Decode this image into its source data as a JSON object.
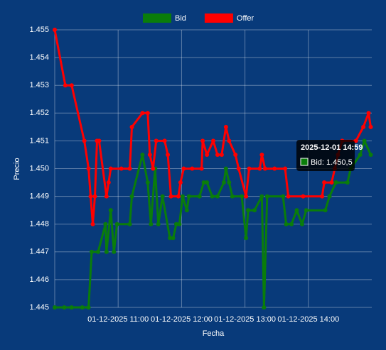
{
  "chart_data": {
    "type": "line",
    "legend": "top",
    "grid": true,
    "xlabel": "Fecha",
    "ylabel": "Precio",
    "xlim": [
      "2025-12-01T10:00",
      "2025-12-01T15:00"
    ],
    "xticks": [
      {
        "value": "2025-12-01T11:00",
        "label": "01-12-2025 11:00"
      },
      {
        "value": "2025-12-01T12:00",
        "label": "01-12-2025 12:00"
      },
      {
        "value": "2025-12-01T13:00",
        "label": "01-12-2025 13:00"
      },
      {
        "value": "2025-12-01T14:00",
        "label": "01-12-2025 14:00"
      }
    ],
    "ylim": [
      1.445,
      1.455
    ],
    "yticks": [
      1.445,
      1.446,
      1.447,
      1.448,
      1.449,
      {
        "value": 1.45,
        "label": "1.450"
      },
      1.451,
      1.452,
      1.453,
      1.454,
      1.455
    ],
    "series": [
      {
        "name": "Bid",
        "color": "#0a7d0a",
        "x": [
          "2025-12-01T10:00",
          "2025-12-01T10:09",
          "2025-12-01T10:16",
          "2025-12-01T10:26",
          "2025-12-01T10:32",
          "2025-12-01T10:35",
          "2025-12-01T10:41",
          "2025-12-01T10:48",
          "2025-12-01T10:49",
          "2025-12-01T10:53",
          "2025-12-01T10:56",
          "2025-12-01T10:59",
          "2025-12-01T11:11",
          "2025-12-01T11:13",
          "2025-12-01T11:23",
          "2025-12-01T11:28",
          "2025-12-01T11:31",
          "2025-12-01T11:35",
          "2025-12-01T11:38",
          "2025-12-01T11:42",
          "2025-12-01T11:49",
          "2025-12-01T11:52",
          "2025-12-01T11:55",
          "2025-12-01T11:58",
          "2025-12-01T12:01",
          "2025-12-01T12:05",
          "2025-12-01T12:07",
          "2025-12-01T12:17",
          "2025-12-01T12:21",
          "2025-12-01T12:24",
          "2025-12-01T12:29",
          "2025-12-01T12:34",
          "2025-12-01T12:40",
          "2025-12-01T12:42",
          "2025-12-01T12:45",
          "2025-12-01T12:48",
          "2025-12-01T12:57",
          "2025-12-01T13:01",
          "2025-12-01T13:03",
          "2025-12-01T13:09",
          "2025-12-01T13:16",
          "2025-12-01T13:18",
          "2025-12-01T13:21",
          "2025-12-01T13:36",
          "2025-12-01T13:39",
          "2025-12-01T13:44",
          "2025-12-01T13:49",
          "2025-12-01T13:54",
          "2025-12-01T13:58",
          "2025-12-01T14:16",
          "2025-12-01T14:20",
          "2025-12-01T14:26",
          "2025-12-01T14:37",
          "2025-12-01T14:40",
          "2025-12-01T14:49",
          "2025-12-01T14:53",
          "2025-12-01T14:59"
        ],
        "values": [
          1.445,
          1.445,
          1.445,
          1.445,
          1.445,
          1.447,
          1.447,
          1.448,
          1.447,
          1.4485,
          1.447,
          1.448,
          1.448,
          1.449,
          1.4505,
          1.4495,
          1.448,
          1.45,
          1.448,
          1.449,
          1.4475,
          1.4475,
          1.448,
          1.448,
          1.449,
          1.4485,
          1.449,
          1.449,
          1.4495,
          1.4495,
          1.449,
          1.449,
          1.4495,
          1.45,
          1.4495,
          1.449,
          1.449,
          1.4475,
          1.4485,
          1.4485,
          1.449,
          1.445,
          1.449,
          1.449,
          1.448,
          1.448,
          1.4485,
          1.448,
          1.4485,
          1.4485,
          1.449,
          1.4495,
          1.4495,
          1.45,
          1.4505,
          1.451,
          1.4505
        ]
      },
      {
        "name": "Offer",
        "color": "#ff0000",
        "x": [
          "2025-12-01T10:00",
          "2025-12-01T10:10",
          "2025-12-01T10:16",
          "2025-12-01T10:28",
          "2025-12-01T10:32",
          "2025-12-01T10:34",
          "2025-12-01T10:36",
          "2025-12-01T10:38",
          "2025-12-01T10:40",
          "2025-12-01T10:42",
          "2025-12-01T10:49",
          "2025-12-01T10:51",
          "2025-12-01T10:53",
          "2025-12-01T11:03",
          "2025-12-01T11:11",
          "2025-12-01T11:13",
          "2025-12-01T11:23",
          "2025-12-01T11:28",
          "2025-12-01T11:30",
          "2025-12-01T11:33",
          "2025-12-01T11:36",
          "2025-12-01T11:44",
          "2025-12-01T11:47",
          "2025-12-01T11:50",
          "2025-12-01T11:57",
          "2025-12-01T11:59",
          "2025-12-01T12:02",
          "2025-12-01T12:10",
          "2025-12-01T12:19",
          "2025-12-01T12:20",
          "2025-12-01T12:24",
          "2025-12-01T12:30",
          "2025-12-01T12:34",
          "2025-12-01T12:38",
          "2025-12-01T12:42",
          "2025-12-01T12:45",
          "2025-12-01T12:51",
          "2025-12-01T12:54",
          "2025-12-01T13:01",
          "2025-12-01T13:04",
          "2025-12-01T13:14",
          "2025-12-01T13:16",
          "2025-12-01T13:19",
          "2025-12-01T13:28",
          "2025-12-01T13:38",
          "2025-12-01T13:41",
          "2025-12-01T13:55",
          "2025-12-01T14:13",
          "2025-12-01T14:15",
          "2025-12-01T14:22",
          "2025-12-01T14:25",
          "2025-12-01T14:28",
          "2025-12-01T14:32",
          "2025-12-01T14:45",
          "2025-12-01T14:52",
          "2025-12-01T14:57",
          "2025-12-01T14:59"
        ],
        "values": [
          1.455,
          1.453,
          1.453,
          1.451,
          1.45,
          1.449,
          1.448,
          1.449,
          1.451,
          1.451,
          1.449,
          1.4495,
          1.45,
          1.45,
          1.45,
          1.4515,
          1.452,
          1.452,
          1.4505,
          1.45,
          1.451,
          1.451,
          1.4505,
          1.449,
          1.449,
          1.4495,
          1.45,
          1.45,
          1.45,
          1.451,
          1.4505,
          1.451,
          1.4505,
          1.4505,
          1.4515,
          1.451,
          1.4505,
          1.45,
          1.449,
          1.45,
          1.45,
          1.4505,
          1.45,
          1.45,
          1.45,
          1.449,
          1.449,
          1.449,
          1.4495,
          1.4495,
          1.45,
          1.4505,
          1.451,
          1.451,
          1.4515,
          1.452,
          1.4515
        ]
      }
    ],
    "tooltip": {
      "title": "2025-12-01 14:59",
      "label": "Bid: 1.450,5"
    }
  }
}
